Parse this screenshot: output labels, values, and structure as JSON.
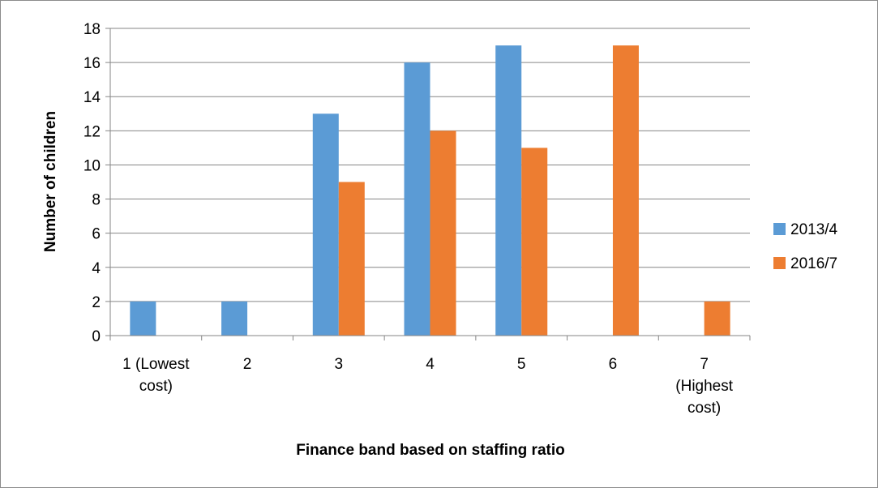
{
  "chart_data": {
    "type": "bar",
    "categories": [
      [
        "1 (Lowest",
        "cost)"
      ],
      [
        "2"
      ],
      [
        "3"
      ],
      [
        "4"
      ],
      [
        "5"
      ],
      [
        "6"
      ],
      [
        "7",
        "(Highest",
        "cost)"
      ]
    ],
    "series": [
      {
        "name": "2013/4",
        "color": "#5b9bd5",
        "values": [
          2,
          2,
          13,
          16,
          17,
          0,
          0
        ]
      },
      {
        "name": "2016/7",
        "color": "#ed7d31",
        "values": [
          0,
          0,
          9,
          12,
          11,
          17,
          2
        ]
      }
    ],
    "xlabel": "Finance band based on staffing ratio",
    "ylabel": "Number of children",
    "ylim": [
      0,
      18
    ],
    "ytick_step": 2,
    "grid": true,
    "legend_position": "right"
  }
}
